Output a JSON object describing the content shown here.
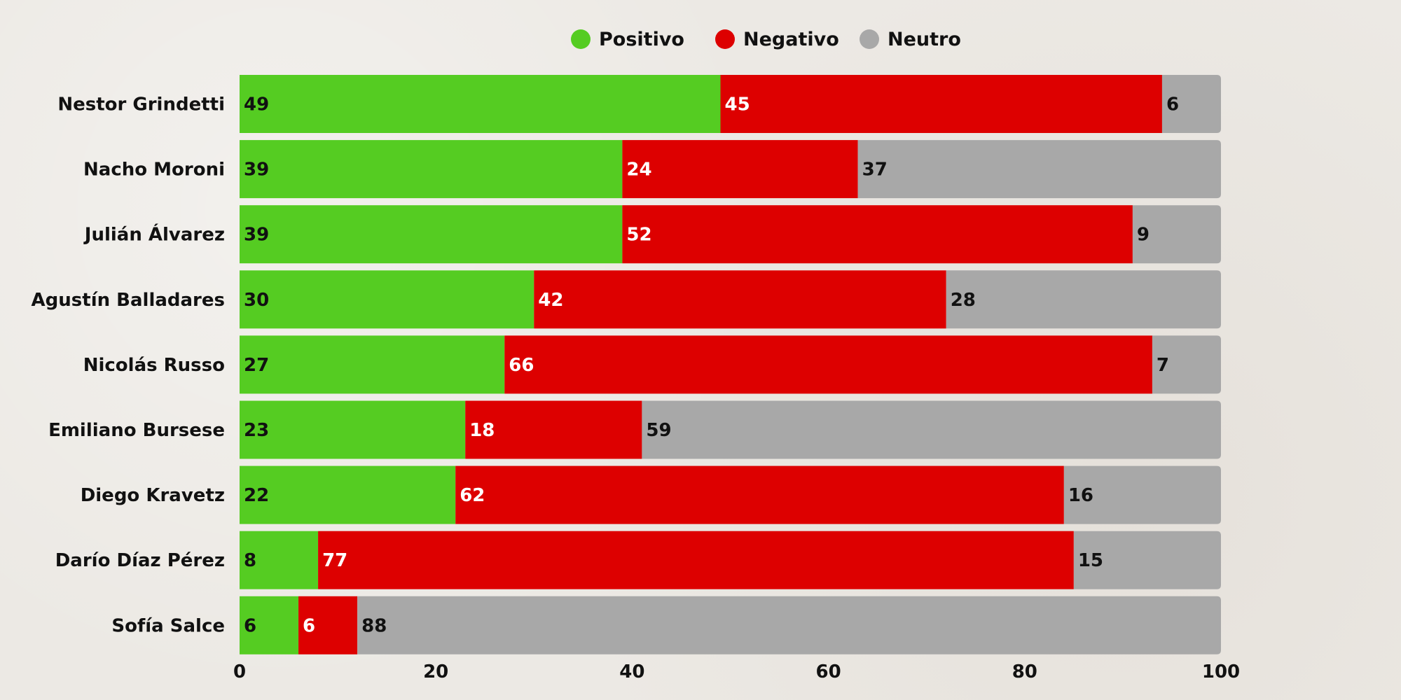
{
  "chart_data": {
    "type": "bar",
    "orientation": "horizontal",
    "stacked": true,
    "categories": [
      "Nestor Grindetti",
      "Nacho Moroni",
      "Julián Álvarez",
      "Agustín Balladares",
      "Nicolás Russo",
      "Emiliano Bursese",
      "Diego Kravetz",
      "Darío Díaz Pérez",
      "Sofía Salce"
    ],
    "series": [
      {
        "name": "Positivo",
        "color": "#55cc22",
        "label_color": "#111111",
        "values": [
          49,
          39,
          39,
          30,
          27,
          23,
          22,
          8,
          6
        ]
      },
      {
        "name": "Negativo",
        "color": "#dd0000",
        "label_color": "#ffffff",
        "values": [
          45,
          24,
          52,
          42,
          66,
          18,
          62,
          77,
          6
        ]
      },
      {
        "name": "Neutro",
        "color": "#a8a8a8",
        "label_color": "#111111",
        "values": [
          6,
          37,
          9,
          28,
          7,
          59,
          16,
          15,
          88
        ]
      }
    ],
    "xlim": [
      0,
      100
    ],
    "xticks": [
      0,
      20,
      40,
      60,
      80,
      100
    ],
    "title": "",
    "xlabel": "",
    "ylabel": "",
    "legend_position": "top-center",
    "grid": false
  }
}
